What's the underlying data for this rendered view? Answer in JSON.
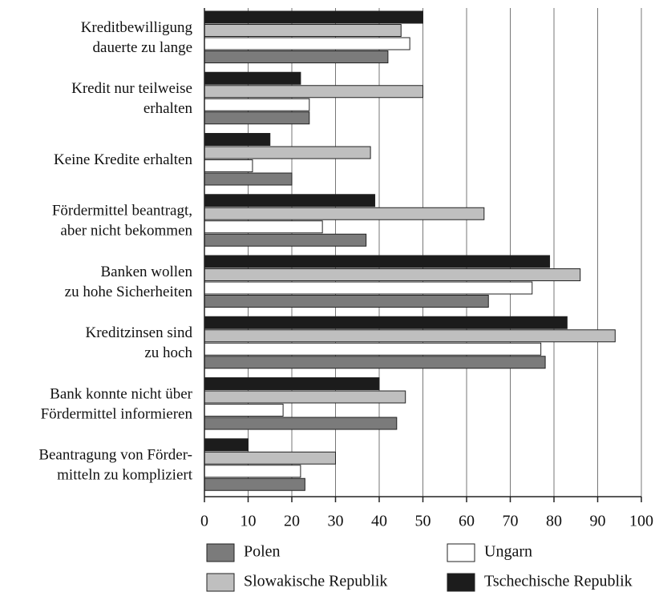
{
  "chart_data": {
    "type": "barh",
    "categories": [
      [
        "Kreditbewilligung",
        "dauerte zu lange"
      ],
      [
        "Kredit nur teilweise",
        "erhalten"
      ],
      [
        "Keine Kredite erhalten"
      ],
      [
        "Fördermittel beantragt,",
        "aber nicht bekommen"
      ],
      [
        "Banken wollen",
        "zu hohe Sicherheiten"
      ],
      [
        "Kreditzinsen sind",
        "zu hoch"
      ],
      [
        "Bank konnte nicht über",
        "Fördermittel informieren"
      ],
      [
        "Beantragung von Förder-",
        "mitteln zu kompliziert"
      ]
    ],
    "series": [
      {
        "name": "Tschechische Republik",
        "color": "#1c1c1c",
        "values": [
          50,
          22,
          15,
          39,
          79,
          83,
          40,
          10
        ]
      },
      {
        "name": "Slowakische Republik",
        "color": "#bfbfbf",
        "values": [
          45,
          50,
          38,
          64,
          86,
          94,
          46,
          30
        ]
      },
      {
        "name": "Ungarn",
        "color": "#ffffff",
        "values": [
          47,
          24,
          11,
          27,
          75,
          77,
          18,
          22
        ]
      },
      {
        "name": "Polen",
        "color": "#7b7b7b",
        "values": [
          42,
          24,
          20,
          37,
          65,
          78,
          44,
          23
        ]
      }
    ],
    "xlim": [
      0,
      100
    ],
    "xticks": [
      0,
      10,
      20,
      30,
      40,
      50,
      60,
      70,
      80,
      90,
      100
    ],
    "grid": true
  }
}
